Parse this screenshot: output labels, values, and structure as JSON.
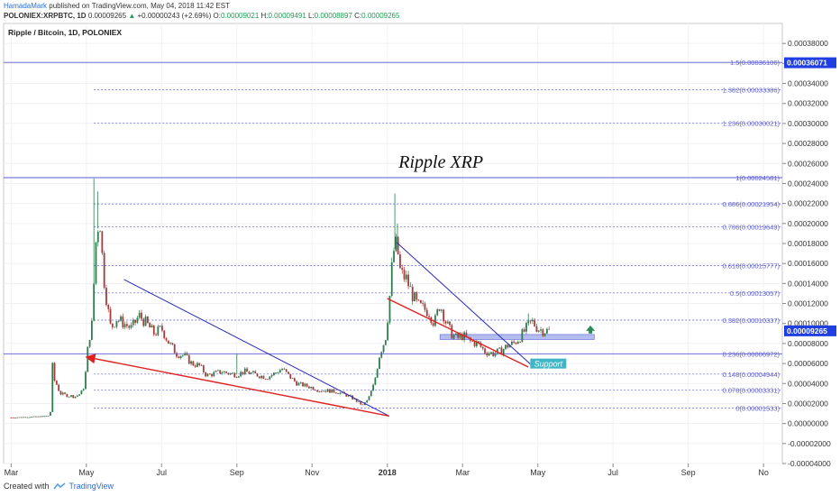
{
  "header": {
    "author": "HamadaMark",
    "published": "published on TradingView.com, May 04, 2018 11:42 EST",
    "symbol": "POLONIEX:XRPBTC, 1D",
    "last": "0.00009265",
    "change": "+0.00000243 (+2.69%)",
    "o_label": "O:",
    "o_val": "0.00009021",
    "h_label": "H:",
    "h_val": "0.00009491",
    "l_label": "L:",
    "l_val": "0.00008897",
    "c_label": "C:",
    "c_val": "0.00009265"
  },
  "footer": {
    "created_with": "Created with",
    "brand": "TradingView"
  },
  "colors": {
    "candle_up": "#2e7d4f",
    "candle_down": "#a83b3b",
    "fib": "#5b5bd6",
    "trend_blue": "#2a2ab8",
    "trend_red": "#e02020",
    "zone": "#9aa8e8",
    "price_tag": "#1f3fe0",
    "support_box": "#3fb6c6",
    "arrow_green": "#2e8b57"
  },
  "chart_data": {
    "type": "candlestick",
    "title": "Ripple / Bitcoin, 1D, POLONIEX",
    "annotation": "Ripple XRP",
    "support_label": "Support",
    "ylim": [
      -4e-05,
      0.0004
    ],
    "y_ticks": [
      "0.00038000",
      "0.00036000",
      "0.00034000",
      "0.00032000",
      "0.00030000",
      "0.00028000",
      "0.00026000",
      "0.00024000",
      "0.00022000",
      "0.00020000",
      "0.00018000",
      "0.00016000",
      "0.00014000",
      "0.00012000",
      "0.00010000",
      "0.00008000",
      "0.00006000",
      "0.00004000",
      "0.00002000",
      "0.00000000",
      "-0.00002000",
      "-0.00004000"
    ],
    "x_ticks": [
      "Mar",
      "May",
      "Jul",
      "Sep",
      "Nov",
      "2018",
      "Mar",
      "May",
      "Jul",
      "Sep",
      "No"
    ],
    "x_tick_months": [
      0,
      2,
      4,
      6,
      8,
      10,
      12,
      14,
      16,
      18,
      20
    ],
    "x_range_months": [
      -0.2,
      20.5
    ],
    "current_price": {
      "label": "0.00009265",
      "value": 9.265e-05
    },
    "high_tag": {
      "label": "0.00036071",
      "value": 0.00036071
    },
    "fib_levels": [
      {
        "label": "1.5(0.00036106)",
        "value": 0.00036106
      },
      {
        "label": "1.382(0.00033386)",
        "value": 0.00033386
      },
      {
        "label": "1.236(0.00030021)",
        "value": 0.00030021
      },
      {
        "label": "1(0.00024581)",
        "value": 0.00024581
      },
      {
        "label": "0.886(0.00021954)",
        "value": 0.00021954
      },
      {
        "label": "0.786(0.00019649)",
        "value": 0.00019649
      },
      {
        "label": "0.618(0.00015777)",
        "value": 0.00015777
      },
      {
        "label": "0.5(0.00013057)",
        "value": 0.00013057
      },
      {
        "label": "0.382(0.00010337)",
        "value": 0.00010337
      },
      {
        "label": "0.236(0.00006972)",
        "value": 6.972e-05
      },
      {
        "label": "0.148(0.00004944)",
        "value": 4.944e-05
      },
      {
        "label": "0.078(0.00003331)",
        "value": 3.331e-05
      },
      {
        "label": "0(0.00001533)",
        "value": 1.533e-05
      }
    ],
    "price_path": [
      [
        0,
        6e-06
      ],
      [
        0.4,
        6.5e-06
      ],
      [
        0.8,
        7e-06
      ],
      [
        1.0,
        8e-06
      ],
      [
        1.05,
        1.2e-05
      ],
      [
        1.08,
        7e-05
      ],
      [
        1.12,
        4.5e-05
      ],
      [
        1.2,
        4e-05
      ],
      [
        1.3,
        3e-05
      ],
      [
        1.5,
        2.8e-05
      ],
      [
        1.7,
        2.7e-05
      ],
      [
        1.85,
        3e-05
      ],
      [
        1.95,
        3.8e-05
      ],
      [
        2.05,
        8e-05
      ],
      [
        2.15,
        0.0001
      ],
      [
        2.25,
        0.00018
      ],
      [
        2.35,
        0.00021
      ],
      [
        2.45,
        0.00015
      ],
      [
        2.55,
        0.00012
      ],
      [
        2.65,
        9.5e-05
      ],
      [
        2.8,
        0.000105
      ],
      [
        3.0,
        0.0001
      ],
      [
        3.2,
        9.5e-05
      ],
      [
        3.4,
        0.000108
      ],
      [
        3.6,
        0.0001
      ],
      [
        3.8,
        9e-05
      ],
      [
        4.0,
        9.5e-05
      ],
      [
        4.2,
        8e-05
      ],
      [
        4.4,
        7e-05
      ],
      [
        4.6,
        6.8e-05
      ],
      [
        4.8,
        6e-05
      ],
      [
        5.0,
        5.8e-05
      ],
      [
        5.2,
        4.8e-05
      ],
      [
        5.4,
        5e-05
      ],
      [
        5.6,
        5.2e-05
      ],
      [
        5.8,
        5e-05
      ],
      [
        6.0,
        4.9e-05
      ],
      [
        6.2,
        5.2e-05
      ],
      [
        6.4,
        5e-05
      ],
      [
        6.6,
        4.8e-05
      ],
      [
        6.8,
        4.6e-05
      ],
      [
        7.0,
        5e-05
      ],
      [
        7.2,
        5.5e-05
      ],
      [
        7.4,
        4.7e-05
      ],
      [
        7.6,
        4e-05
      ],
      [
        7.8,
        3.8e-05
      ],
      [
        8.0,
        3.6e-05
      ],
      [
        8.2,
        3.3e-05
      ],
      [
        8.4,
        3.3e-05
      ],
      [
        8.6,
        3.2e-05
      ],
      [
        8.8,
        3e-05
      ],
      [
        9.0,
        2.7e-05
      ],
      [
        9.2,
        2.2e-05
      ],
      [
        9.35,
        1.8e-05
      ],
      [
        9.5,
        2.5e-05
      ],
      [
        9.65,
        4e-05
      ],
      [
        9.8,
        7e-05
      ],
      [
        9.95,
        8.5e-05
      ],
      [
        10.05,
        0.00012
      ],
      [
        10.15,
        0.00017
      ],
      [
        10.25,
        0.00018
      ],
      [
        10.35,
        0.00015
      ],
      [
        10.5,
        0.000145
      ],
      [
        10.65,
        0.00013
      ],
      [
        10.8,
        0.000118
      ],
      [
        10.95,
        0.000115
      ],
      [
        11.1,
        0.000112
      ],
      [
        11.25,
        0.0001
      ],
      [
        11.4,
        0.00012
      ],
      [
        11.55,
        0.000102
      ],
      [
        11.7,
        9e-05
      ],
      [
        11.85,
        8.5e-05
      ],
      [
        12.0,
        8.8e-05
      ],
      [
        12.2,
        8.2e-05
      ],
      [
        12.4,
        8e-05
      ],
      [
        12.6,
        7.2e-05
      ],
      [
        12.8,
        7e-05
      ],
      [
        13.0,
        7.2e-05
      ],
      [
        13.2,
        7.8e-05
      ],
      [
        13.35,
        8e-05
      ],
      [
        13.5,
        8.5e-05
      ],
      [
        13.6,
        9e-05
      ],
      [
        13.75,
        9.8e-05
      ],
      [
        13.85,
        0.000102
      ],
      [
        14.0,
        9.5e-05
      ],
      [
        14.15,
        9.3e-05
      ],
      [
        14.3,
        9.27e-05
      ]
    ],
    "spikes": [
      {
        "x": 1.08,
        "high": 7e-05
      },
      {
        "x": 2.2,
        "high": 0.000245
      },
      {
        "x": 2.3,
        "high": 0.000232
      },
      {
        "x": 10.2,
        "high": 0.00023
      },
      {
        "x": 10.27,
        "high": 0.0002
      },
      {
        "x": 6.0,
        "high": 7e-05
      },
      {
        "x": 13.75,
        "high": 0.00011
      }
    ],
    "trendlines": [
      {
        "color": "blue",
        "from": [
          3.0,
          0.000144
        ],
        "to": [
          10.05,
          7.5e-06
        ]
      },
      {
        "color": "red",
        "from": [
          2.0,
          6.65e-05
        ],
        "to": [
          10.05,
          7.5e-06
        ],
        "arrow_end": "start"
      },
      {
        "color": "blue",
        "from": [
          10.25,
          0.000181
        ],
        "to": [
          13.8,
          5.95e-05
        ]
      },
      {
        "color": "red",
        "from": [
          10.0,
          0.000125
        ],
        "to": [
          13.75,
          5.65e-05
        ]
      }
    ],
    "zone": {
      "x_from": 11.4,
      "x_to": 15.5,
      "y_from": 8.4e-05,
      "y_to": 8.9e-05
    },
    "support_box": {
      "x": 13.8,
      "y": 5.95e-05
    },
    "arrow_up": {
      "x": 15.4,
      "y": 9.45e-05
    }
  }
}
